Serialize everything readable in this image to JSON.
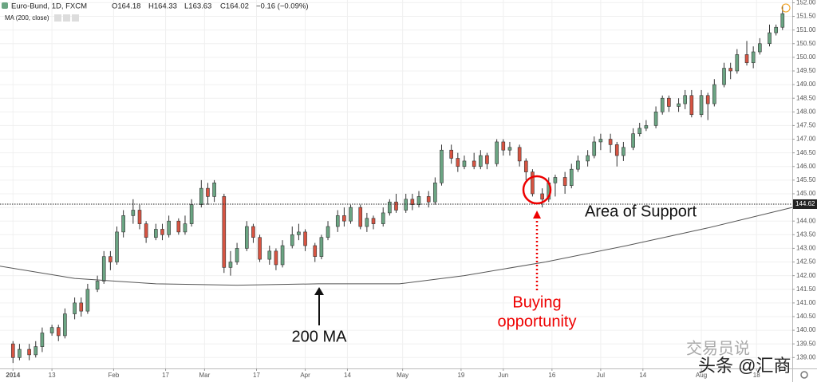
{
  "chart_data": {
    "type": "candlestick",
    "title": "Euro-Bund, 1D, FXCM",
    "ohlc_legend": [
      "O164.18",
      "H164.33",
      "L163.63",
      "C164.02",
      "−0.16 (−0.09%)"
    ],
    "up_color": "#6ba583",
    "down_color": "#d75442",
    "x": [
      1,
      3,
      6,
      8,
      10,
      13,
      15,
      17,
      20,
      22,
      24,
      27,
      29,
      31,
      33,
      35,
      38,
      40,
      42,
      45,
      47,
      49,
      52,
      54,
      56,
      59,
      61,
      63,
      66,
      68,
      70,
      73,
      75,
      77,
      80,
      82,
      84,
      87,
      89,
      91,
      94,
      96,
      98,
      101,
      103,
      105,
      108,
      110,
      112,
      115,
      117,
      119,
      122,
      124,
      126,
      129,
      131,
      133,
      136,
      138,
      140,
      143,
      145,
      147,
      150,
      152,
      154,
      157,
      159,
      161,
      164,
      166,
      168,
      171,
      173,
      175,
      178,
      180,
      182,
      185,
      187,
      189,
      192,
      194,
      196,
      199,
      201,
      203,
      206,
      208,
      210,
      213,
      215,
      217,
      220,
      222,
      224,
      227,
      229,
      231,
      234,
      236,
      238
    ],
    "open": [
      139.5,
      139.0,
      139.3,
      139.1,
      139.4,
      139.9,
      140.1,
      139.8,
      140.6,
      141.0,
      140.7,
      141.5,
      141.8,
      142.7,
      142.5,
      143.6,
      144.2,
      144.4,
      143.9,
      143.4,
      143.7,
      143.5,
      144.0,
      143.6,
      143.9,
      144.6,
      145.2,
      144.9,
      144.9,
      142.3,
      142.5,
      143.0,
      143.8,
      143.4,
      142.6,
      142.9,
      142.4,
      143.1,
      143.5,
      143.6,
      143.1,
      142.7,
      143.4,
      143.8,
      144.2,
      144.0,
      144.5,
      143.8,
      144.1,
      143.9,
      144.3,
      144.7,
      144.4,
      144.8,
      144.6,
      144.9,
      144.7,
      145.4,
      146.6,
      146.3,
      146.0,
      146.2,
      146.0,
      146.4,
      146.1,
      146.9,
      146.6,
      146.7,
      146.2,
      145.8,
      145.0,
      144.8,
      145.4,
      145.6,
      145.3,
      145.9,
      146.2,
      146.4,
      146.9,
      147.0,
      146.8,
      146.4,
      146.7,
      147.2,
      147.4,
      147.5,
      148.0,
      148.5,
      148.2,
      148.3,
      148.6,
      147.9,
      148.6,
      148.3,
      149.0,
      149.6,
      149.5,
      150.1,
      149.8,
      150.2,
      150.5,
      150.9,
      151.1
    ],
    "high": [
      139.6,
      139.5,
      139.5,
      139.6,
      140.1,
      140.2,
      140.2,
      140.8,
      141.2,
      141.2,
      141.7,
      142.0,
      142.9,
      142.9,
      143.8,
      144.4,
      144.8,
      144.6,
      144.0,
      143.9,
      143.9,
      144.2,
      144.1,
      144.2,
      144.8,
      145.5,
      145.4,
      145.5,
      145.0,
      142.9,
      143.2,
      144.0,
      143.9,
      143.5,
      143.1,
      143.0,
      143.3,
      143.8,
      143.9,
      143.7,
      143.2,
      143.5,
      144.0,
      144.4,
      144.5,
      144.6,
      144.6,
      144.3,
      144.2,
      144.5,
      144.8,
      145.0,
      145.0,
      145.0,
      145.1,
      145.1,
      145.6,
      146.8,
      146.8,
      146.5,
      146.4,
      146.5,
      146.6,
      146.5,
      147.0,
      147.0,
      146.9,
      146.8,
      146.3,
      145.9,
      145.2,
      145.6,
      145.7,
      145.8,
      146.1,
      146.4,
      146.6,
      147.1,
      147.2,
      147.2,
      146.9,
      146.9,
      147.4,
      147.6,
      147.7,
      148.2,
      148.6,
      148.6,
      148.5,
      148.8,
      148.8,
      148.8,
      148.7,
      149.2,
      149.8,
      149.8,
      150.3,
      150.6,
      150.4,
      150.7,
      151.2,
      151.2,
      151.9
    ],
    "low": [
      138.8,
      138.9,
      138.9,
      139.0,
      139.2,
      139.8,
      139.6,
      139.7,
      140.4,
      140.5,
      140.6,
      141.4,
      141.7,
      142.2,
      142.4,
      143.4,
      143.9,
      143.7,
      143.2,
      143.3,
      143.3,
      143.4,
      143.5,
      143.5,
      143.8,
      144.5,
      144.6,
      144.7,
      142.1,
      142.0,
      142.4,
      142.9,
      143.2,
      142.5,
      142.4,
      142.2,
      142.3,
      143.0,
      143.3,
      142.9,
      142.5,
      142.6,
      143.3,
      143.6,
      143.8,
      143.9,
      143.7,
      143.6,
      143.7,
      143.8,
      144.2,
      144.3,
      144.3,
      144.4,
      144.5,
      144.5,
      144.6,
      145.3,
      146.1,
      145.8,
      145.9,
      145.9,
      145.9,
      145.9,
      146.0,
      146.4,
      146.4,
      146.0,
      145.5,
      144.9,
      144.5,
      144.7,
      144.9,
      145.0,
      145.2,
      145.8,
      146.0,
      146.3,
      146.6,
      146.5,
      146.0,
      146.2,
      146.6,
      147.1,
      147.3,
      147.4,
      147.9,
      148.0,
      148.0,
      148.1,
      147.8,
      147.8,
      147.7,
      148.2,
      148.9,
      149.2,
      149.4,
      149.7,
      149.6,
      150.1,
      150.4,
      150.8,
      151.0
    ],
    "close": [
      139.0,
      139.3,
      139.1,
      139.4,
      139.9,
      140.1,
      139.8,
      140.6,
      141.0,
      140.7,
      141.5,
      141.8,
      142.7,
      142.5,
      143.6,
      144.2,
      144.4,
      143.9,
      143.4,
      143.7,
      143.5,
      144.0,
      143.6,
      143.9,
      144.6,
      145.2,
      144.9,
      145.4,
      142.3,
      142.5,
      143.0,
      143.8,
      143.4,
      142.6,
      142.9,
      142.4,
      143.1,
      143.5,
      143.6,
      143.1,
      142.7,
      143.4,
      143.8,
      144.2,
      144.0,
      144.5,
      143.8,
      144.1,
      143.9,
      144.3,
      144.7,
      144.4,
      144.8,
      144.6,
      144.9,
      144.7,
      145.4,
      146.6,
      146.3,
      146.0,
      146.2,
      146.0,
      146.4,
      146.1,
      146.9,
      146.6,
      146.7,
      146.2,
      145.8,
      145.0,
      144.8,
      145.4,
      145.6,
      145.3,
      145.9,
      146.2,
      146.4,
      146.9,
      147.0,
      146.8,
      146.4,
      146.7,
      147.2,
      147.4,
      147.5,
      148.0,
      148.5,
      148.2,
      148.3,
      148.6,
      147.9,
      148.6,
      148.3,
      149.0,
      149.6,
      149.5,
      150.1,
      149.8,
      150.2,
      150.5,
      150.9,
      151.1,
      151.6
    ],
    "ma": {
      "name": "MA (200, close)",
      "color": "#555555",
      "x": [
        -3,
        20,
        45,
        70,
        95,
        120,
        140,
        165,
        190,
        215,
        241
      ],
      "values": [
        142.35,
        141.9,
        141.7,
        141.65,
        141.7,
        141.7,
        142.0,
        142.5,
        143.1,
        143.75,
        144.5
      ]
    },
    "support": {
      "value": 144.62,
      "label": "144.62"
    },
    "annotations": {
      "support": "Area of Support",
      "ma": "200 MA",
      "buy": [
        "Buying",
        "opportunity"
      ]
    },
    "watermark": [
      "交易员说",
      "头条 @汇商"
    ],
    "xlim": [
      -3,
      241
    ],
    "ylim": [
      138.6,
      152.1
    ],
    "xticks": [
      {
        "value": 1,
        "label": "2014"
      },
      {
        "value": 13,
        "label": "13"
      },
      {
        "value": 32,
        "label": "Feb"
      },
      {
        "value": 48,
        "label": "17"
      },
      {
        "value": 60,
        "label": "Mar"
      },
      {
        "value": 76,
        "label": "17"
      },
      {
        "value": 91,
        "label": "Apr"
      },
      {
        "value": 104,
        "label": "14"
      },
      {
        "value": 121,
        "label": "May"
      },
      {
        "value": 139,
        "label": "19"
      },
      {
        "value": 152,
        "label": "Jun"
      },
      {
        "value": 167,
        "label": "16"
      },
      {
        "value": 182,
        "label": "Jul"
      },
      {
        "value": 195,
        "label": "14"
      },
      {
        "value": 213,
        "label": "Aug"
      },
      {
        "value": 230,
        "label": "18"
      }
    ],
    "yticks": [
      {
        "value": 139,
        "label": "139.00"
      },
      {
        "value": 139.5,
        "label": "139.50"
      },
      {
        "value": 140,
        "label": "140.00"
      },
      {
        "value": 140.5,
        "label": "140.50"
      },
      {
        "value": 141,
        "label": "141.00"
      },
      {
        "value": 141.5,
        "label": "141.50"
      },
      {
        "value": 142,
        "label": "142.00"
      },
      {
        "value": 142.5,
        "label": "142.50"
      },
      {
        "value": 143,
        "label": "143.00"
      },
      {
        "value": 143.5,
        "label": "143.50"
      },
      {
        "value": 144,
        "label": "144.00"
      },
      {
        "value": 144.5,
        "label": "144.50"
      },
      {
        "value": 145,
        "label": "145.00"
      },
      {
        "value": 145.5,
        "label": "145.50"
      },
      {
        "value": 146,
        "label": "146.00"
      },
      {
        "value": 146.5,
        "label": "146.50"
      },
      {
        "value": 147,
        "label": "147.00"
      },
      {
        "value": 147.5,
        "label": "147.50"
      },
      {
        "value": 148,
        "label": "148.00"
      },
      {
        "value": 148.5,
        "label": "148.50"
      },
      {
        "value": 149,
        "label": "149.00"
      },
      {
        "value": 149.5,
        "label": "149.50"
      },
      {
        "value": 150,
        "label": "150.00"
      },
      {
        "value": 150.5,
        "label": "150.50"
      },
      {
        "value": 151,
        "label": "151.00"
      },
      {
        "value": 151.5,
        "label": "151.50"
      },
      {
        "value": 152,
        "label": "152.00"
      }
    ],
    "grid": true
  }
}
